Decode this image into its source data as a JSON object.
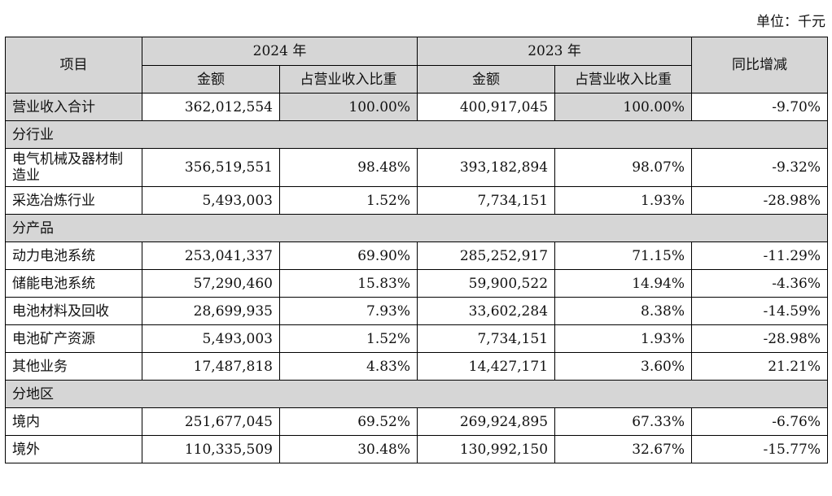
{
  "unit_note": "单位：千元",
  "header": {
    "item": "项目",
    "year_2024": "2024 年",
    "year_2023": "2023 年",
    "yoy": "同比增减",
    "amount": "金额",
    "ratio": "占营业收入比重"
  },
  "total": {
    "label": "营业收入合计",
    "amount_2024": "362,012,554",
    "ratio_2024": "100.00%",
    "amount_2023": "400,917,045",
    "ratio_2023": "100.00%",
    "yoy": "-9.70%"
  },
  "sections": [
    {
      "title": "分行业",
      "rows": [
        {
          "label": "电气机械及器材制造业",
          "amount_2024": "356,519,551",
          "ratio_2024": "98.48%",
          "amount_2023": "393,182,894",
          "ratio_2023": "98.07%",
          "yoy": "-9.32%"
        },
        {
          "label": "采选冶炼行业",
          "amount_2024": "5,493,003",
          "ratio_2024": "1.52%",
          "amount_2023": "7,734,151",
          "ratio_2023": "1.93%",
          "yoy": "-28.98%"
        }
      ]
    },
    {
      "title": "分产品",
      "rows": [
        {
          "label": "动力电池系统",
          "amount_2024": "253,041,337",
          "ratio_2024": "69.90%",
          "amount_2023": "285,252,917",
          "ratio_2023": "71.15%",
          "yoy": "-11.29%"
        },
        {
          "label": "储能电池系统",
          "amount_2024": "57,290,460",
          "ratio_2024": "15.83%",
          "amount_2023": "59,900,522",
          "ratio_2023": "14.94%",
          "yoy": "-4.36%"
        },
        {
          "label": "电池材料及回收",
          "amount_2024": "28,699,935",
          "ratio_2024": "7.93%",
          "amount_2023": "33,602,284",
          "ratio_2023": "8.38%",
          "yoy": "-14.59%"
        },
        {
          "label": "电池矿产资源",
          "amount_2024": "5,493,003",
          "ratio_2024": "1.52%",
          "amount_2023": "7,734,151",
          "ratio_2023": "1.93%",
          "yoy": "-28.98%"
        },
        {
          "label": "其他业务",
          "amount_2024": "17,487,818",
          "ratio_2024": "4.83%",
          "amount_2023": "14,427,171",
          "ratio_2023": "3.60%",
          "yoy": "21.21%"
        }
      ]
    },
    {
      "title": "分地区",
      "rows": [
        {
          "label": "境内",
          "amount_2024": "251,677,045",
          "ratio_2024": "69.52%",
          "amount_2023": "269,924,895",
          "ratio_2023": "67.33%",
          "yoy": "-6.76%"
        },
        {
          "label": "境外",
          "amount_2024": "110,335,509",
          "ratio_2024": "30.48%",
          "amount_2023": "130,992,150",
          "ratio_2023": "32.67%",
          "yoy": "-15.77%"
        }
      ]
    }
  ]
}
